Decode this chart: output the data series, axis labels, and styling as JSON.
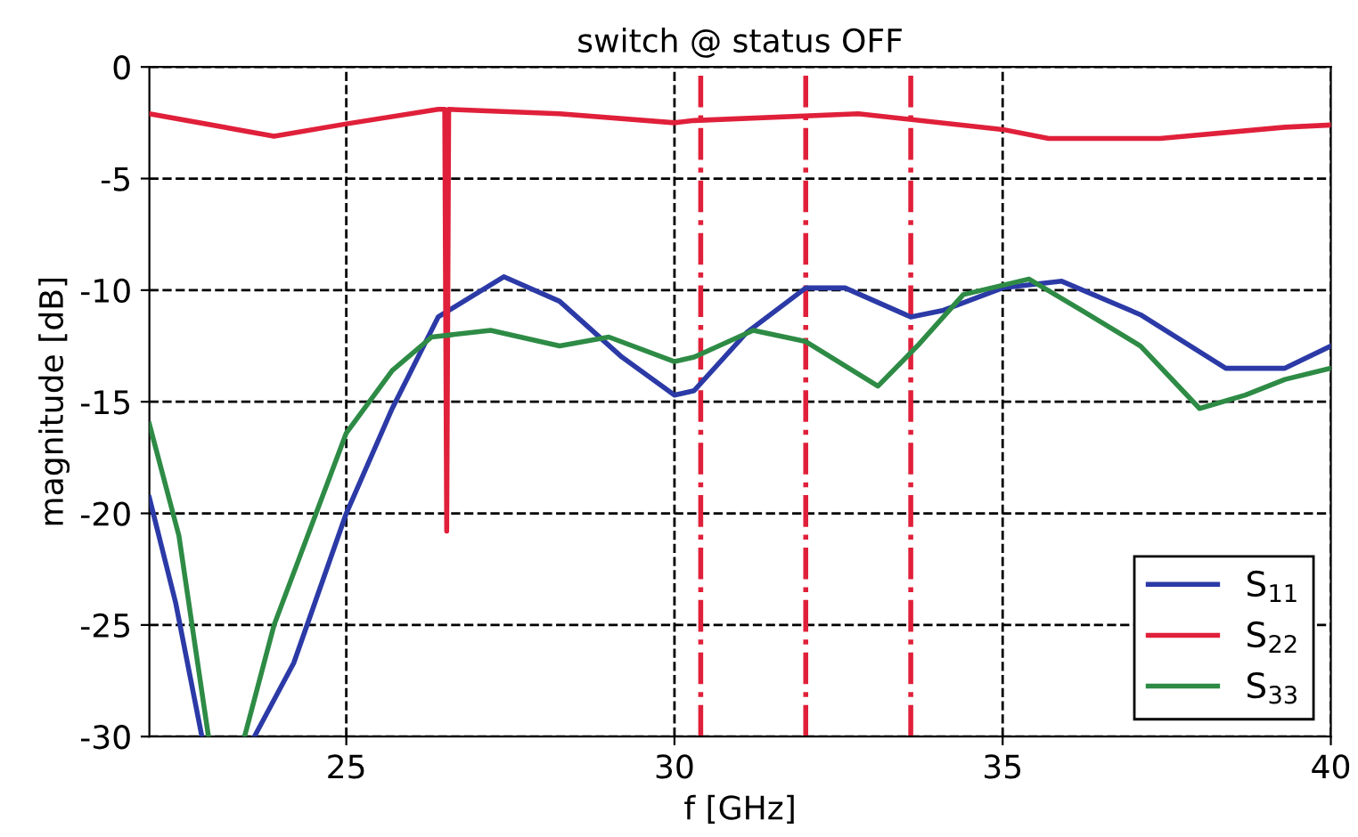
{
  "chart_data": {
    "type": "line",
    "title": "switch @ status OFF",
    "xlabel": "f [GHz]",
    "ylabel": "magnitude [dB]",
    "xlim": [
      22,
      40
    ],
    "xticks": [
      25,
      30,
      35,
      40
    ],
    "ylim": [
      -30,
      0
    ],
    "yticks": [
      -30,
      -25,
      -20,
      -15,
      -10,
      -5,
      0
    ],
    "grid": true,
    "legend": "bottom right",
    "line_style": "solid",
    "marker": "none",
    "series": [
      {
        "name": "S$_{11}$",
        "color": "#2b3aa6",
        "x": [
          22,
          22.4,
          22.8,
          23.2,
          23.6,
          24.2,
          25,
          25.7,
          26.4,
          27.4,
          28.25,
          29.2,
          30,
          30.3,
          31.1,
          32,
          32.6,
          33.6,
          34.1,
          35,
          35.9,
          37.1,
          38.4,
          39.3,
          40
        ],
        "values": [
          -19.3,
          -24,
          -30,
          null,
          -30,
          -26.7,
          -20,
          -15.3,
          -11.2,
          -9.4,
          -10.5,
          -13,
          -14.7,
          -14.5,
          -11.9,
          -9.9,
          -9.9,
          -11.2,
          -10.9,
          -9.9,
          -9.6,
          -11.1,
          -13.5,
          -13.5,
          -12.5
        ]
      },
      {
        "name": "S$_{22}$",
        "color": "#e0203a",
        "x": [
          22,
          23.9,
          25,
          26.4,
          26.5,
          26.53,
          26.56,
          28.25,
          30,
          30.3,
          32.8,
          35,
          35.7,
          37.4,
          39.3,
          40
        ],
        "values": [
          -2.1,
          -3.1,
          -2.55,
          -1.9,
          -1.9,
          -20.8,
          -1.9,
          -2.1,
          -2.5,
          -2.4,
          -2.1,
          -2.8,
          -3.2,
          -3.2,
          -2.7,
          -2.6
        ]
      },
      {
        "name": "S$_{33}$",
        "color": "#2e8b45",
        "x": [
          22,
          22.45,
          22.8,
          22.9,
          23.2,
          23.45,
          23.9,
          25,
          25.7,
          26.3,
          27.2,
          28.25,
          29,
          30,
          30.3,
          31.2,
          32,
          33.1,
          33.7,
          34.4,
          35.4,
          36.2,
          37.1,
          38,
          38.7,
          39.3,
          40
        ],
        "values": [
          -16,
          -21,
          -28,
          -30,
          null,
          -30,
          -25,
          -16.4,
          -13.6,
          -12.1,
          -11.8,
          -12.5,
          -12.1,
          -13.2,
          -13,
          -11.8,
          -12.3,
          -14.3,
          -12.5,
          -10.2,
          -9.5,
          -10.9,
          -12.5,
          -15.3,
          -14.7,
          -14,
          -13.5
        ]
      }
    ],
    "ref_lines": [
      {
        "axis": "x",
        "value": 30.4,
        "color": "#e0203a",
        "line_style": "dashdot"
      },
      {
        "axis": "x",
        "value": 32,
        "color": "#e0203a",
        "line_style": "dashdot"
      },
      {
        "axis": "x",
        "value": 33.6,
        "color": "#e0203a",
        "line_style": "dashdot"
      }
    ]
  }
}
